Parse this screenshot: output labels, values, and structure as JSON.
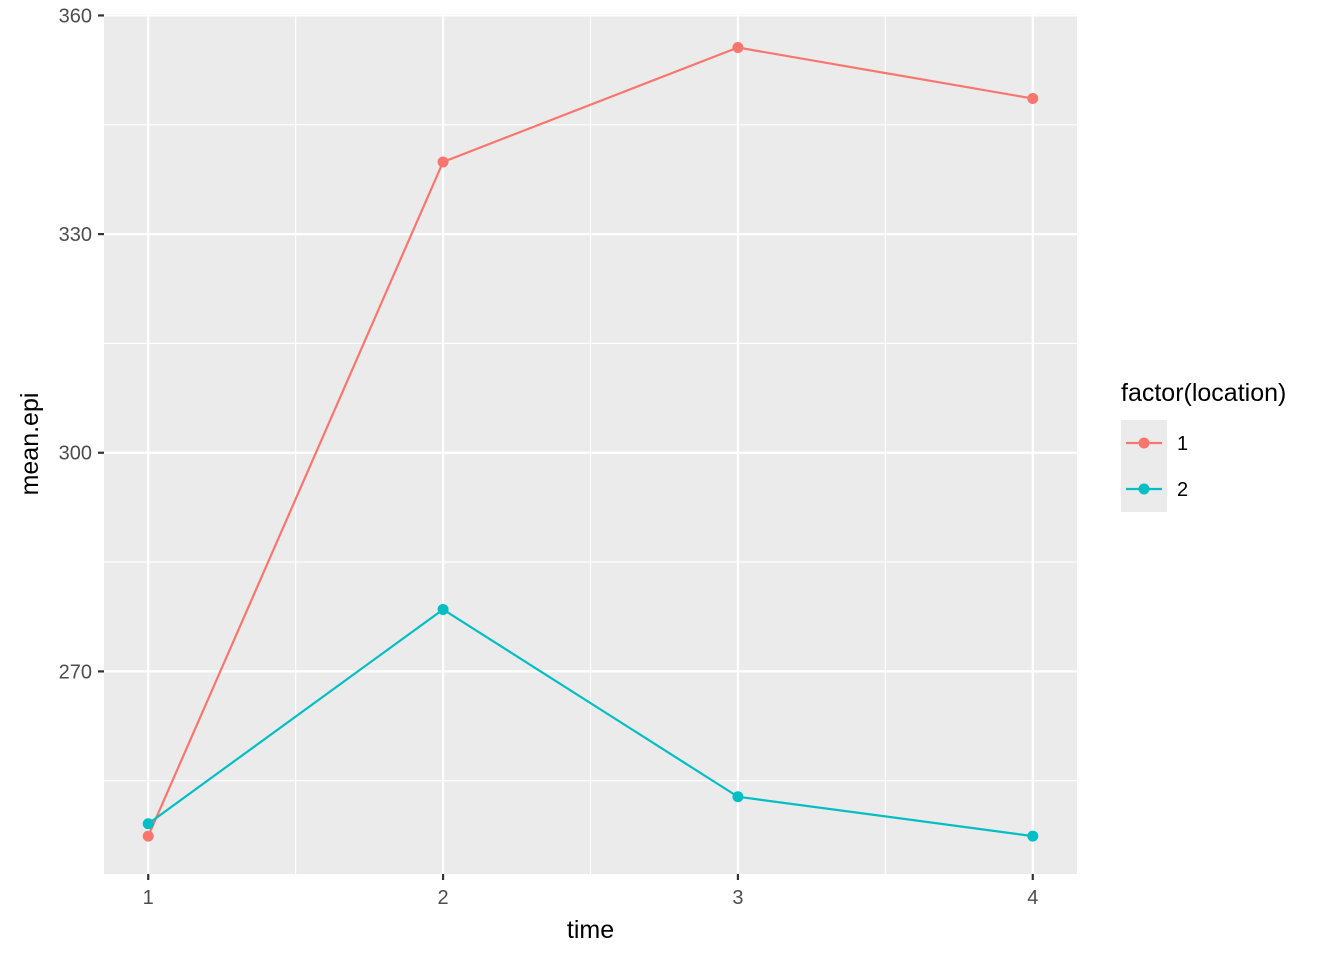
{
  "chart_data": {
    "type": "line",
    "title": "",
    "xlabel": "time",
    "ylabel": "mean.epi",
    "x": [
      1,
      2,
      3,
      4
    ],
    "x_ticks": [
      "1",
      "2",
      "3",
      "4"
    ],
    "y_ticks": [
      "270",
      "300",
      "330",
      "360"
    ],
    "xlim": [
      0.85,
      4.15
    ],
    "ylim": [
      242.2,
      360.2
    ],
    "grid": true,
    "legend": {
      "title": "factor(location)",
      "placement": "right"
    },
    "series": [
      {
        "name": "1",
        "color": "#F8766D",
        "values": [
          247.4,
          339.9,
          355.6,
          348.6
        ]
      },
      {
        "name": "2",
        "color": "#00BFC4",
        "values": [
          249.1,
          278.5,
          252.8,
          247.4
        ]
      }
    ]
  }
}
